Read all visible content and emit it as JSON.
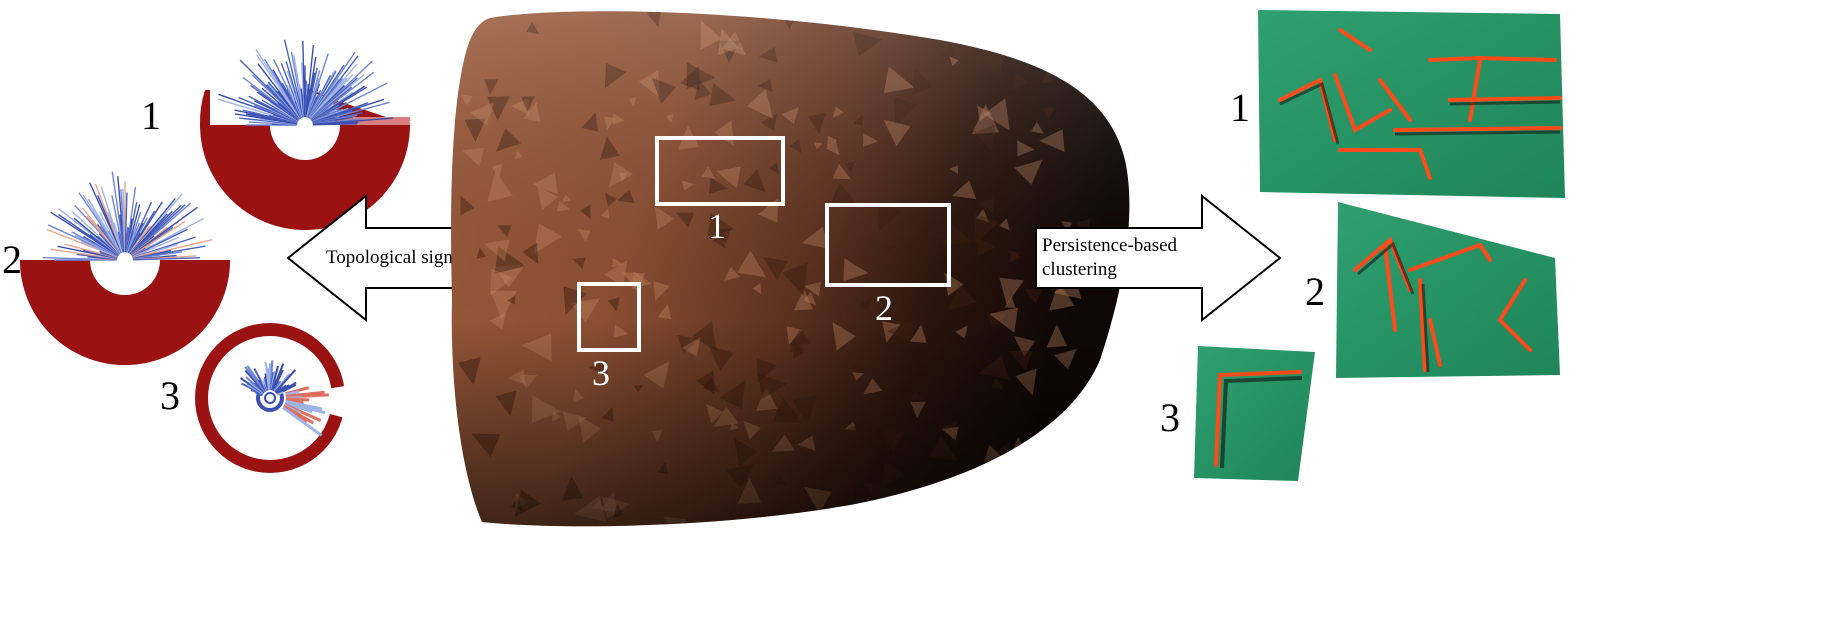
{
  "arrows": {
    "left_label": "Topological signatures",
    "right_label_line1": "Persistence-based",
    "right_label_line2": "clustering"
  },
  "signatures": [
    {
      "label": "1"
    },
    {
      "label": "2"
    },
    {
      "label": "3"
    }
  ],
  "regions": [
    {
      "label": "1"
    },
    {
      "label": "2"
    },
    {
      "label": "3"
    }
  ],
  "clusters": [
    {
      "label": "1"
    },
    {
      "label": "2"
    },
    {
      "label": "3"
    }
  ],
  "colors": {
    "tablet": "#8a4f33",
    "tablet_dark": "#1a0d08",
    "barcode_red": "#9b1212",
    "barcode_blue": "#3a4fb0",
    "barcode_light_blue": "#9fb3e6",
    "cluster_green": "#2e9a6c",
    "cluster_edge": "#ff4a1a"
  }
}
